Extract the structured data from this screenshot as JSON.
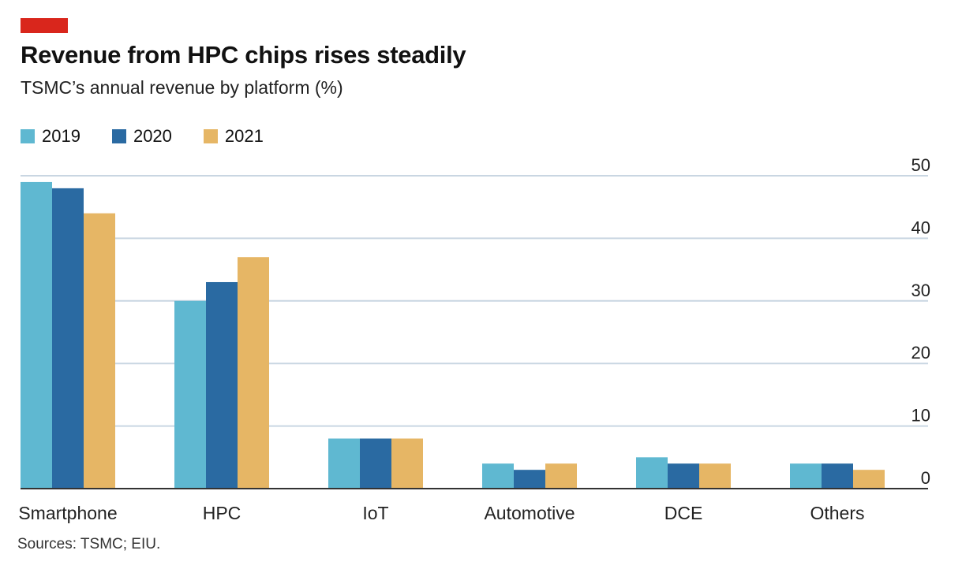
{
  "title": "Revenue from HPC chips rises steadily",
  "subtitle": "TSMC’s annual revenue by platform (%)",
  "source": "Sources: TSMC; EIU.",
  "colors": {
    "brand_tag": "#d9261c",
    "series_2019": "#5fb8d1",
    "series_2020": "#2a6aa2",
    "series_2021": "#e6b665",
    "gridline": "#c9d6e2",
    "baseline": "#333333"
  },
  "chart_data": {
    "type": "bar",
    "title": "Revenue from HPC chips rises steadily",
    "subtitle": "TSMC’s annual revenue by platform (%)",
    "categories": [
      "Smartphone",
      "HPC",
      "IoT",
      "Automotive",
      "DCE",
      "Others"
    ],
    "series": [
      {
        "name": "2019",
        "values": [
          49,
          30,
          8,
          4,
          5,
          4
        ]
      },
      {
        "name": "2020",
        "values": [
          48,
          33,
          8,
          3,
          4,
          4
        ]
      },
      {
        "name": "2021",
        "values": [
          44,
          37,
          8,
          4,
          4,
          3
        ]
      }
    ],
    "yticks": [
      0,
      10,
      20,
      30,
      40,
      50
    ],
    "ylim": [
      0,
      50
    ],
    "xlabel": "",
    "ylabel": "",
    "grid": true,
    "legend_position": "top-left",
    "y_axis_position": "right"
  }
}
